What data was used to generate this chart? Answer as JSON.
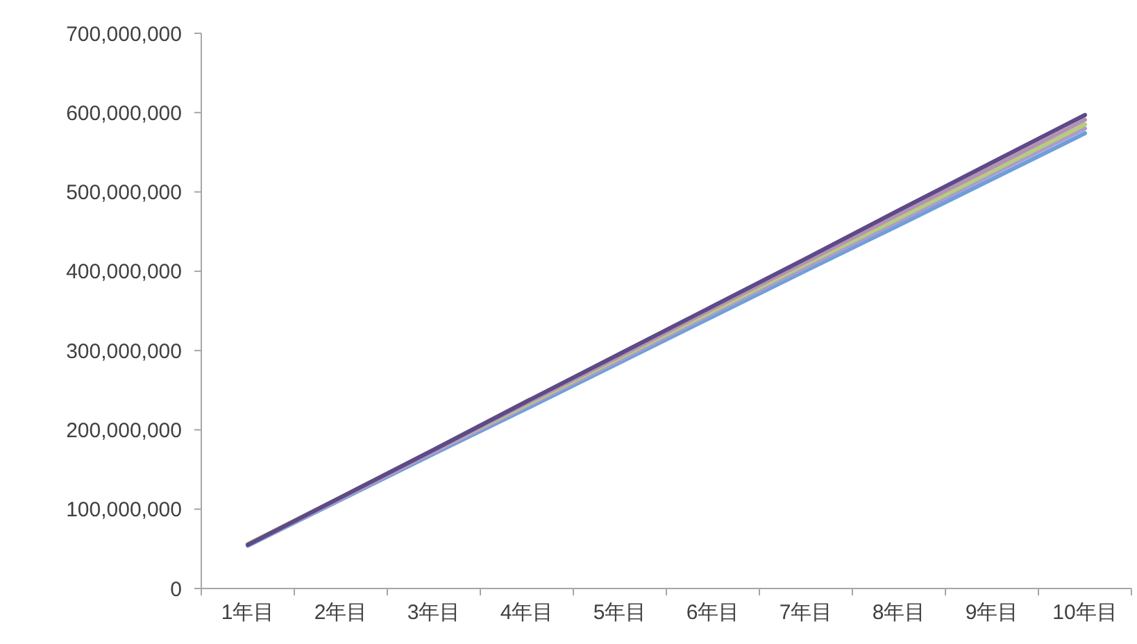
{
  "chart_data": {
    "type": "line",
    "categories": [
      "1年目",
      "2年目",
      "3年目",
      "4年目",
      "5年目",
      "6年目",
      "7年目",
      "8年目",
      "9年目",
      "10年目"
    ],
    "ylim": [
      0,
      700000000
    ],
    "yticks": [
      {
        "value": 0,
        "label": "0"
      },
      {
        "value": 100000000,
        "label": "100,000,000"
      },
      {
        "value": 200000000,
        "label": "200,000,000"
      },
      {
        "value": 300000000,
        "label": "300,000,000"
      },
      {
        "value": 400000000,
        "label": "400,000,000"
      },
      {
        "value": 500000000,
        "label": "500,000,000"
      },
      {
        "value": 600000000,
        "label": "600,000,000"
      },
      {
        "value": 700000000,
        "label": "700,000,000"
      }
    ],
    "series": [
      {
        "color": "#6f9fd8",
        "values": [
          54000000,
          112000000,
          170000000,
          227000000,
          285000000,
          343000000,
          401000000,
          458000000,
          516000000,
          574000000
        ]
      },
      {
        "color": "#a99cd0",
        "values": [
          55000000,
          113000000,
          172000000,
          230000000,
          288000000,
          347000000,
          405000000,
          463000000,
          522000000,
          580000000
        ]
      },
      {
        "color": "#b8cc7a",
        "values": [
          56000000,
          115000000,
          174000000,
          232000000,
          291000000,
          350000000,
          409000000,
          467000000,
          526000000,
          585000000
        ]
      },
      {
        "color": "#b392b8",
        "values": [
          55000000,
          115000000,
          174000000,
          234000000,
          293000000,
          353000000,
          412000000,
          472000000,
          531000000,
          591000000
        ]
      },
      {
        "color": "#5d4a86",
        "values": [
          55000000,
          115000000,
          175000000,
          236000000,
          296000000,
          356000000,
          416000000,
          477000000,
          537000000,
          597000000
        ]
      }
    ]
  }
}
